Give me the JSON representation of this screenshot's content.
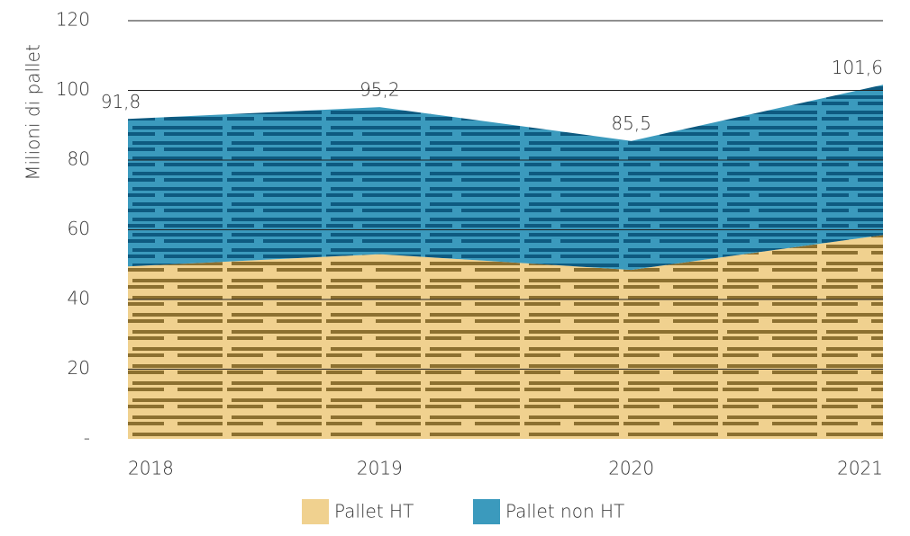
{
  "chart_data": {
    "type": "stacked_area",
    "y_label": "Milioni di pallet",
    "categories": [
      "2018",
      "2019",
      "2020",
      "2021"
    ],
    "series": [
      {
        "name": "Pallet HT",
        "color": "#f0d18f",
        "stripe": "#8c7030",
        "values": [
          49.5,
          53,
          48.5,
          58.5
        ]
      },
      {
        "name": "Pallet non HT",
        "color": "#3b9abd",
        "stripe": "#0e5a80",
        "values": [
          42.3,
          42.2,
          37,
          43.1
        ]
      }
    ],
    "totals": [
      91.8,
      95.2,
      85.5,
      101.6
    ],
    "total_labels": [
      "91,8",
      "95,2",
      "85,5",
      "101,6"
    ],
    "ylim": [
      0,
      120
    ],
    "yticks": [
      {
        "value": 0,
        "label": "-"
      },
      20,
      40,
      60,
      80,
      100,
      120
    ],
    "grid": true
  }
}
